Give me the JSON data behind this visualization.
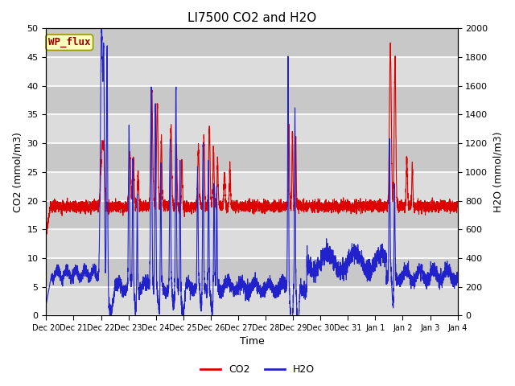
{
  "title": "LI7500 CO2 and H2O",
  "xlabel": "Time",
  "ylabel_left": "CO2 (mmol/m3)",
  "ylabel_right": "H2O (mmol/m3)",
  "ylim_left": [
    0,
    50
  ],
  "ylim_right": [
    0,
    2000
  ],
  "yticks_left": [
    0,
    5,
    10,
    15,
    20,
    25,
    30,
    35,
    40,
    45,
    50
  ],
  "yticks_right": [
    0,
    200,
    400,
    600,
    800,
    1000,
    1200,
    1400,
    1600,
    1800,
    2000
  ],
  "co2_color": "#dd0000",
  "h2o_color": "#2222cc",
  "bg_light": "#dcdcdc",
  "bg_dark": "#c8c8c8",
  "grid_color": "white",
  "annotation_text": "WP_flux",
  "annotation_bg": "#ffffbb",
  "annotation_border": "#999900",
  "title_fontsize": 11,
  "axis_fontsize": 9,
  "tick_fontsize": 8,
  "legend_fontsize": 9,
  "n_points": 5040,
  "days": [
    "Dec 20",
    "Dec 21",
    "Dec 22",
    "Dec 23",
    "Dec 24",
    "Dec 25",
    "Dec 26",
    "Dec 27",
    "Dec 28",
    "Dec 29",
    "Dec 30",
    "Dec 31",
    "Jan 1",
    "Jan 2",
    "Jan 3",
    "Jan 4"
  ]
}
